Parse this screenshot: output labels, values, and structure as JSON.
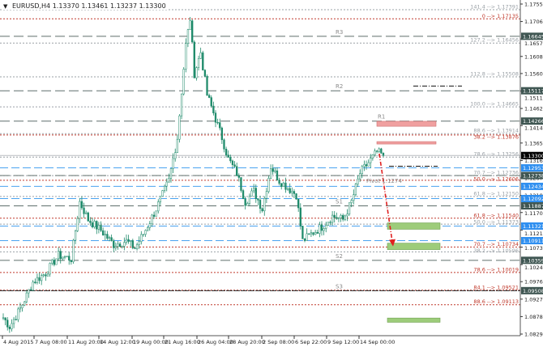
{
  "header": {
    "symbol": "EURUSD,H4",
    "quotes": "1.13370 1.13461 1.13237 1.13300"
  },
  "chart_data": {
    "type": "candlestick",
    "ylim": [
      1.0829,
      1.1755
    ],
    "colors": {
      "candle": "#1e8a6a",
      "axis_bg": "#ffffff",
      "pivot": "#5f6f6b",
      "support_blue": "#4aa3f0",
      "fib_red": "#c0392b",
      "fib_gray": "#9aa0a6",
      "buy_zone": "#9dcc7a",
      "sell_zone": "#f0a0a0",
      "arrow": "#e02020"
    },
    "x_tick_labels": [
      "4 Aug 2015",
      "7 Aug 08:00",
      "11 Aug 20:00",
      "14 Aug 12:00",
      "19 Aug 00:00",
      "21 Aug 16:00",
      "26 Aug 04:00",
      "28 Aug 20:00",
      "2 Sep 08:00",
      "6 Sep 22:00",
      "9 Sep 12:00",
      "14 Sep 00:00"
    ],
    "y_tick_labels": [
      "1.17550",
      "1.17060",
      "1.16570",
      "1.16080",
      "1.15600",
      "1.15110",
      "1.14620",
      "1.14140",
      "1.13650",
      "1.13160",
      "1.12670",
      "1.12180",
      "1.11700",
      "1.11210",
      "1.10730",
      "1.10240",
      "1.09760",
      "1.09270",
      "1.08780",
      "1.08290"
    ],
    "price_path": [
      [
        0,
        1.0875
      ],
      [
        3,
        1.085
      ],
      [
        8,
        1.09
      ],
      [
        14,
        1.0975
      ],
      [
        20,
        1.1
      ],
      [
        26,
        1.105
      ],
      [
        32,
        1.104
      ],
      [
        36,
        1.12
      ],
      [
        40,
        1.115
      ],
      [
        46,
        1.112
      ],
      [
        52,
        1.108
      ],
      [
        58,
        1.109
      ],
      [
        62,
        1.107
      ],
      [
        66,
        1.111
      ],
      [
        72,
        1.118
      ],
      [
        78,
        1.126
      ],
      [
        82,
        1.138
      ],
      [
        86,
        1.164
      ],
      [
        88,
        1.1714
      ],
      [
        90,
        1.156
      ],
      [
        93,
        1.162
      ],
      [
        96,
        1.15
      ],
      [
        99,
        1.145
      ],
      [
        103,
        1.138
      ],
      [
        106,
        1.132
      ],
      [
        110,
        1.128
      ],
      [
        114,
        1.12
      ],
      [
        118,
        1.123
      ],
      [
        122,
        1.118
      ],
      [
        126,
        1.13
      ],
      [
        130,
        1.126
      ],
      [
        134,
        1.124
      ],
      [
        138,
        1.122
      ],
      [
        141,
        1.109
      ],
      [
        145,
        1.111
      ],
      [
        150,
        1.113
      ],
      [
        155,
        1.116
      ],
      [
        160,
        1.115
      ],
      [
        164,
        1.12
      ],
      [
        168,
        1.128
      ],
      [
        172,
        1.131
      ],
      [
        176,
        1.134
      ],
      [
        179,
        1.133
      ]
    ],
    "current_price": {
      "value": 1.133,
      "label": "1.13300"
    },
    "pivots": [
      {
        "name": "R3",
        "price": 1.16645,
        "label": "1.16645"
      },
      {
        "name": "R2",
        "price": 1.15117,
        "label": "1.15117"
      },
      {
        "name": "R1",
        "price": 1.14266,
        "label": "1.14266"
      },
      {
        "name": "Pivot 1.1274",
        "price": 1.12738,
        "label": "1.12738"
      },
      {
        "name": "S1",
        "price": 1.11887,
        "label": "1.11887"
      },
      {
        "name": "S2",
        "price": 1.10359,
        "label": "1.10359"
      },
      {
        "name": "S3",
        "price": 1.09508,
        "label": "1.09508"
      }
    ],
    "blue_levels": [
      {
        "price": 1.12953,
        "label": "1.12953"
      },
      {
        "price": 1.12434,
        "label": "1.12434"
      },
      {
        "price": 1.12092,
        "label": "1.12092"
      },
      {
        "price": 1.11321,
        "label": "1.11321"
      },
      {
        "price": 1.10911,
        "label": "1.10911"
      }
    ],
    "fib_gray": [
      {
        "level": "141.4",
        "price": 1.17391,
        "label": "141.4 --> 1.17391"
      },
      {
        "level": "127.2",
        "price": 1.16456,
        "label": "127.2 --> 1.16456"
      },
      {
        "level": "112.8",
        "price": 1.15508,
        "label": "112.8 --> 1.15508"
      },
      {
        "level": "100.0",
        "price": 1.14665,
        "label": "100.0 --> 1.14665"
      },
      {
        "level": "88.6",
        "price": 1.13914,
        "label": "88.6 --> 1.13914"
      },
      {
        "level": "78.6",
        "price": 1.13256,
        "label": "78.6 --> 1.13256"
      },
      {
        "level": "70.7",
        "price": 1.12736,
        "label": "70.7 --> 1.12736"
      },
      {
        "level": "61.8",
        "price": 1.1215,
        "label": "61.8 --> 1.12150"
      },
      {
        "level": "50.0",
        "price": 1.11373,
        "label": "50.0 --> 1.11373"
      },
      {
        "level": "38.2",
        "price": 1.10596,
        "label": "38.2 --> 1.10596"
      }
    ],
    "fib_red": [
      {
        "level": "0",
        "price": 1.17135,
        "label": "0 --> 1.17135"
      },
      {
        "level": "38.2",
        "price": 1.13876,
        "label": "38.2 --> 1.13876"
      },
      {
        "level": "50.0",
        "price": 1.12606,
        "label": "50.0 --> 1.12606"
      },
      {
        "level": "61.8",
        "price": 1.1154,
        "label": "61.8 --> 1.11540"
      },
      {
        "level": "70.7",
        "price": 1.10734,
        "label": "70.7 --> 1.10734"
      },
      {
        "level": "78.6",
        "price": 1.10019,
        "label": "78.6 --> 1.10019"
      },
      {
        "level": "84.1",
        "price": 1.09521,
        "label": "84.1 --> 1.09521"
      },
      {
        "level": "88.6",
        "price": 1.09113,
        "label": "88.6 --> 1.09113"
      }
    ],
    "zones": [
      {
        "kind": "sell",
        "top": 1.1426,
        "bottom": 1.1412
      },
      {
        "kind": "sell",
        "top": 1.1369,
        "bottom": 1.1363
      },
      {
        "kind": "buy",
        "top": 1.1141,
        "bottom": 1.1123
      },
      {
        "kind": "buy",
        "top": 1.1084,
        "bottom": 1.1066
      },
      {
        "kind": "buy",
        "top": 1.0874,
        "bottom": 1.0862
      }
    ],
    "forecast_arrow": {
      "from": 1.1335,
      "to": 1.1075
    }
  }
}
